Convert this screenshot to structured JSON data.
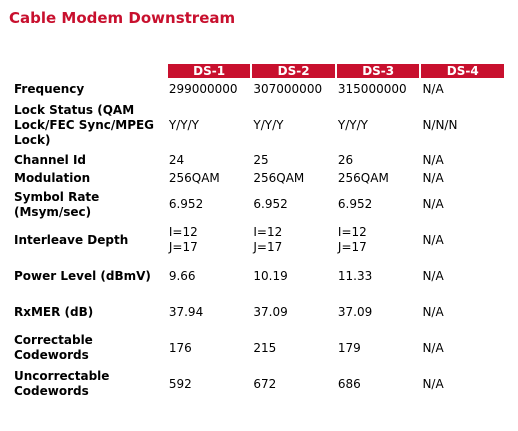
{
  "page": {
    "title": "Cable Modem Downstream"
  },
  "table": {
    "headers": [
      "",
      "DS-1",
      "DS-2",
      "DS-3",
      "DS-4"
    ],
    "rows": [
      {
        "label": "Frequency",
        "values": [
          "299000000",
          "307000000",
          "315000000",
          "N/A"
        ]
      },
      {
        "label": "Lock Status (QAM Lock/FEC Sync/MPEG Lock)",
        "values": [
          "Y/Y/Y",
          "Y/Y/Y",
          "Y/Y/Y",
          "N/N/N"
        ]
      },
      {
        "label": "Channel Id",
        "values": [
          "24",
          "25",
          "26",
          "N/A"
        ]
      },
      {
        "label": "Modulation",
        "values": [
          "256QAM",
          "256QAM",
          "256QAM",
          "N/A"
        ]
      },
      {
        "label": "Symbol Rate (Msym/sec)",
        "values": [
          "6.952",
          "6.952",
          "6.952",
          "N/A"
        ]
      },
      {
        "label": "Interleave Depth",
        "values": [
          [
            "I=12",
            "J=17"
          ],
          [
            "I=12",
            "J=17"
          ],
          [
            "I=12",
            "J=17"
          ],
          "N/A"
        ]
      },
      {
        "label": "Power Level (dBmV)",
        "values": [
          "9.66",
          "10.19",
          "11.33",
          "N/A"
        ]
      },
      {
        "label": "RxMER (dB)",
        "values": [
          "37.94",
          "37.09",
          "37.09",
          "N/A"
        ]
      },
      {
        "label": "Correctable Codewords",
        "values": [
          "176",
          "215",
          "179",
          "N/A"
        ]
      },
      {
        "label": "Uncorrectable Codewords",
        "values": [
          "592",
          "672",
          "686",
          "N/A"
        ]
      }
    ]
  }
}
